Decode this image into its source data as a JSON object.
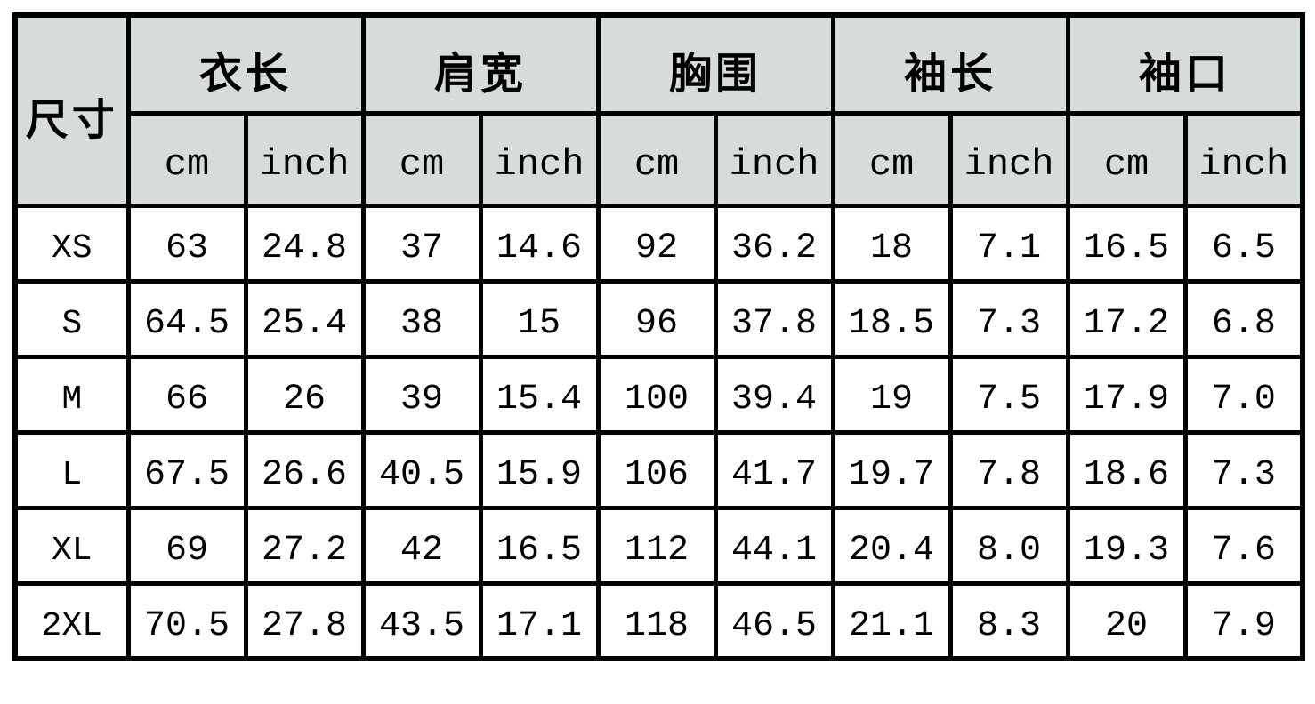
{
  "colors": {
    "header_bg": "#d6dcda",
    "grid_border": "#000000",
    "cell_bg": "#ffffff",
    "text": "#000000"
  },
  "chart_data": {
    "type": "table",
    "corner_header": "尺寸",
    "column_groups": [
      {
        "label": "衣长"
      },
      {
        "label": "肩宽"
      },
      {
        "label": "胸围"
      },
      {
        "label": "袖长"
      },
      {
        "label": "袖口"
      }
    ],
    "unit_headers": [
      "cm",
      "inch",
      "cm",
      "inch",
      "cm",
      "inch",
      "cm",
      "inch",
      "cm",
      "inch"
    ],
    "rows": [
      {
        "size": "XS",
        "values": [
          "63",
          "24.8",
          "37",
          "14.6",
          "92",
          "36.2",
          "18",
          "7.1",
          "16.5",
          "6.5"
        ]
      },
      {
        "size": "S",
        "values": [
          "64.5",
          "25.4",
          "38",
          "15",
          "96",
          "37.8",
          "18.5",
          "7.3",
          "17.2",
          "6.8"
        ]
      },
      {
        "size": "M",
        "values": [
          "66",
          "26",
          "39",
          "15.4",
          "100",
          "39.4",
          "19",
          "7.5",
          "17.9",
          "7.0"
        ]
      },
      {
        "size": "L",
        "values": [
          "67.5",
          "26.6",
          "40.5",
          "15.9",
          "106",
          "41.7",
          "19.7",
          "7.8",
          "18.6",
          "7.3"
        ]
      },
      {
        "size": "XL",
        "values": [
          "69",
          "27.2",
          "42",
          "16.5",
          "112",
          "44.1",
          "20.4",
          "8.0",
          "19.3",
          "7.6"
        ]
      },
      {
        "size": "2XL",
        "values": [
          "70.5",
          "27.8",
          "43.5",
          "17.1",
          "118",
          "46.5",
          "21.1",
          "8.3",
          "20",
          "7.9"
        ]
      }
    ]
  }
}
